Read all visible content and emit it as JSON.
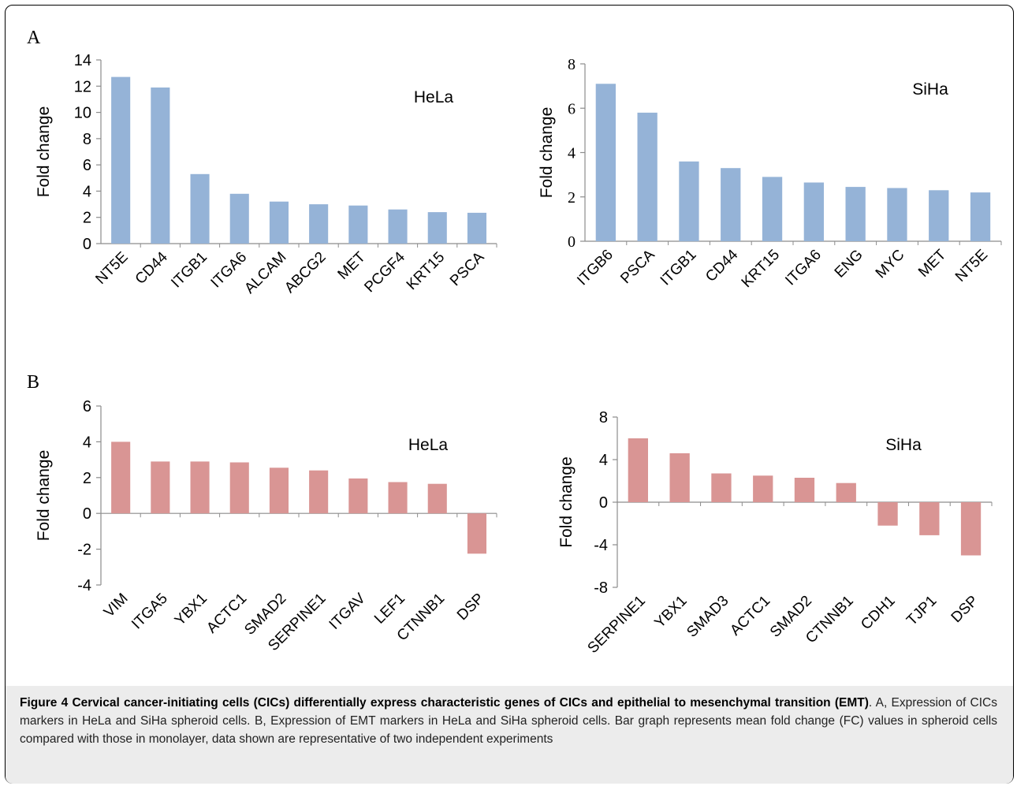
{
  "figure": {
    "panel_labels": {
      "a": "A",
      "b": "B"
    },
    "caption": {
      "title": "Figure 4 Cervical cancer-initiating cells (CICs) differentially express characteristic genes of CICs and epithelial to mesenchymal transition (EMT)",
      "body": ". A, Expression of CICs markers in HeLa and SiHa spheroid cells. B, Expression of EMT markers in HeLa and SiHa spheroid cells. Bar graph represents mean fold change (FC) values in spheroid cells compared with those in monolayer, data shown are representative of two independent experiments"
    }
  },
  "chart_data": [
    {
      "type": "bar",
      "panel": "A",
      "title": "HeLa",
      "ylabel": "Fold change",
      "xlabel": "",
      "ylim": [
        0,
        14
      ],
      "yticks": [
        0,
        2,
        4,
        6,
        8,
        10,
        12,
        14
      ],
      "categories": [
        "NT5E",
        "CD44",
        "ITGB1",
        "ITGA6",
        "ALCAM",
        "ABCG2",
        "MET",
        "PCGF4",
        "KRT15",
        "PSCA"
      ],
      "values": [
        12.7,
        11.9,
        5.3,
        3.8,
        3.2,
        3.0,
        2.9,
        2.6,
        2.4,
        2.35
      ],
      "color": "#95b3d7",
      "grid": false,
      "legend": "none"
    },
    {
      "type": "bar",
      "panel": "A",
      "title": "SiHa",
      "ylabel": "Fold change",
      "xlabel": "",
      "ylim": [
        0,
        8
      ],
      "yticks": [
        0,
        2,
        4,
        6,
        8
      ],
      "categories": [
        "ITGB6",
        "PSCA",
        "ITGB1",
        "CD44",
        "KRT15",
        "ITGA6",
        "ENG",
        "MYC",
        "MET",
        "NT5E"
      ],
      "values": [
        7.1,
        5.8,
        3.6,
        3.3,
        2.9,
        2.65,
        2.45,
        2.4,
        2.3,
        2.2
      ],
      "color": "#95b3d7",
      "grid": false,
      "legend": "none"
    },
    {
      "type": "bar",
      "panel": "B",
      "title": "HeLa",
      "ylabel": "Fold change",
      "xlabel": "",
      "ylim": [
        -4,
        6
      ],
      "yticks": [
        -4,
        -2,
        0,
        2,
        4,
        6
      ],
      "categories": [
        "VIM",
        "ITGA5",
        "YBX1",
        "ACTC1",
        "SMAD2",
        "SERPINE1",
        "ITGAV",
        "LEF1",
        "CTNNB1",
        "DSP"
      ],
      "values": [
        4.0,
        2.9,
        2.9,
        2.85,
        2.55,
        2.4,
        1.95,
        1.75,
        1.65,
        -2.25
      ],
      "color": "#d99594",
      "grid": false,
      "legend": "none"
    },
    {
      "type": "bar",
      "panel": "B",
      "title": "SiHa",
      "ylabel": "Fold change",
      "xlabel": "",
      "ylim": [
        -8,
        8
      ],
      "yticks": [
        -8,
        -4,
        0,
        4,
        8
      ],
      "categories": [
        "SERPINE1",
        "YBX1",
        "SMAD3",
        "ACTC1",
        "SMAD2",
        "CTNNB1",
        "CDH1",
        "TJP1",
        "DSP"
      ],
      "values": [
        6.0,
        4.6,
        2.7,
        2.5,
        2.3,
        1.8,
        -2.2,
        -3.1,
        -5.0
      ],
      "color": "#d99594",
      "grid": false,
      "legend": "none"
    }
  ]
}
